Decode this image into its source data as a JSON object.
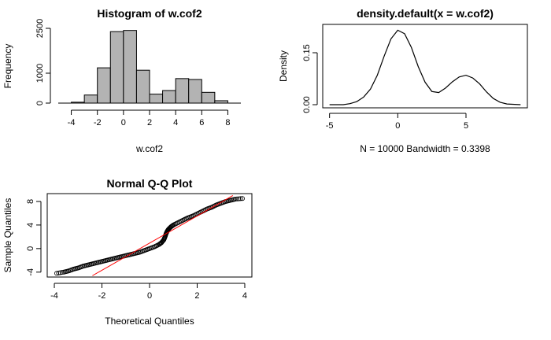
{
  "chart_data": [
    {
      "type": "bar",
      "title": "Histogram of w.cof2",
      "xlabel": "w.cof2",
      "ylabel": "Frequency",
      "bin_edges": [
        -4,
        -3,
        -2,
        -1,
        0,
        1,
        2,
        3,
        4,
        5,
        6,
        7,
        8
      ],
      "values": [
        30,
        270,
        1180,
        2390,
        2430,
        1100,
        300,
        420,
        820,
        790,
        360,
        80
      ],
      "xlim": [
        -5,
        9
      ],
      "ylim": [
        0,
        2500
      ],
      "xticks": [
        "-4",
        "-2",
        "0",
        "2",
        "4",
        "6",
        "8"
      ],
      "yticks": [
        "0",
        "1000",
        "2500"
      ],
      "bar_color": "#b3b3b3"
    },
    {
      "type": "line",
      "title": "density.default(x = w.cof2)",
      "xlabel": "N = 10000   Bandwidth = 0.3398",
      "ylabel": "Density",
      "x": [
        -5.0,
        -4.0,
        -3.5,
        -3.0,
        -2.5,
        -2.0,
        -1.5,
        -1.0,
        -0.5,
        0.0,
        0.5,
        1.0,
        1.5,
        2.0,
        2.5,
        3.0,
        3.5,
        4.0,
        4.5,
        5.0,
        5.5,
        6.0,
        6.5,
        7.0,
        7.5,
        8.0,
        9.0
      ],
      "y": [
        0.0,
        0.0,
        0.003,
        0.009,
        0.022,
        0.045,
        0.085,
        0.14,
        0.19,
        0.215,
        0.205,
        0.165,
        0.11,
        0.065,
        0.038,
        0.035,
        0.048,
        0.066,
        0.08,
        0.085,
        0.077,
        0.06,
        0.037,
        0.018,
        0.007,
        0.002,
        0.0
      ],
      "xlim": [
        -5.5,
        9.5
      ],
      "ylim": [
        0,
        0.225
      ],
      "xticks": [
        "-5",
        "0",
        "5"
      ],
      "yticks": [
        "0.00",
        "0.15"
      ],
      "line_color": "#000000"
    },
    {
      "type": "scatter",
      "title": "Normal Q-Q Plot",
      "xlabel": "Theoretical Quantiles",
      "ylabel": "Sample Quantiles",
      "x": [
        -3.9,
        -3.6,
        -3.4,
        -3.2,
        -3.0,
        -2.8,
        -2.6,
        -2.4,
        -2.2,
        -2.0,
        -1.8,
        -1.6,
        -1.4,
        -1.2,
        -1.0,
        -0.8,
        -0.6,
        -0.4,
        -0.2,
        0.0,
        0.2,
        0.4,
        0.5,
        0.6,
        0.65,
        0.7,
        0.75,
        0.8,
        0.9,
        1.0,
        1.2,
        1.4,
        1.6,
        1.8,
        2.0,
        2.2,
        2.4,
        2.6,
        2.8,
        3.0,
        3.2,
        3.4,
        3.6,
        3.9
      ],
      "y": [
        -4.2,
        -4.0,
        -3.8,
        -3.5,
        -3.3,
        -3.0,
        -2.8,
        -2.6,
        -2.4,
        -2.2,
        -2.0,
        -1.8,
        -1.6,
        -1.4,
        -1.2,
        -1.0,
        -0.8,
        -0.6,
        -0.3,
        0.0,
        0.3,
        0.7,
        1.0,
        1.5,
        2.0,
        2.6,
        3.0,
        3.3,
        3.7,
        4.0,
        4.4,
        4.8,
        5.2,
        5.5,
        5.9,
        6.3,
        6.7,
        7.0,
        7.4,
        7.7,
        8.0,
        8.2,
        8.4,
        8.5
      ],
      "reference_line": {
        "x1": -2.4,
        "y1": -4.6,
        "x2": 3.5,
        "y2": 9.0,
        "color": "#ff0000"
      },
      "xlim": [
        -4.1,
        4.1
      ],
      "ylim": [
        -4.7,
        9.2
      ],
      "xticks": [
        "-4",
        "-2",
        "0",
        "2",
        "4"
      ],
      "yticks": [
        "-4",
        "0",
        "4",
        "8"
      ]
    }
  ]
}
